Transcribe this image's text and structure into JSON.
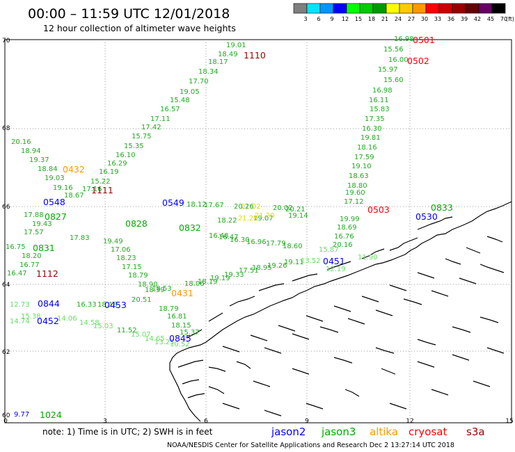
{
  "header": {
    "title": "00:00 – 11:59 UTC 12/01/2018",
    "subtitle": "12 hour collection of altimeter wave heights"
  },
  "colorbar": {
    "colors": [
      "#7f7f7f",
      "#00e5ff",
      "#0096ff",
      "#0000ff",
      "#00ff00",
      "#00cc00",
      "#009900",
      "#ffff00",
      "#ffcc00",
      "#ff9900",
      "#ff0000",
      "#cc0000",
      "#990000",
      "#660000",
      "#660066",
      "#000000"
    ],
    "labels": [
      "3",
      "6",
      "9",
      "12",
      "15",
      "18",
      "21",
      "24",
      "27",
      "30",
      "33",
      "36",
      "39",
      "42",
      "45",
      "70"
    ],
    "unit": "(ft)"
  },
  "axes": {
    "lat_labels": [
      "70",
      "68",
      "66",
      "64",
      "62",
      "60"
    ],
    "lon_labels": [
      "0",
      "3",
      "6",
      "9",
      "12",
      "15"
    ]
  },
  "colors": {
    "jason2": "#0000ff",
    "jason3": "#00aa00",
    "altika": "#ff9900",
    "cryosat": "#ff0000",
    "s3a": "#990000",
    "track_jason3": "#22aa22",
    "track_light": "#66dd66",
    "track_yellow": "#dddd00"
  },
  "track_labels": [
    {
      "text": "1110",
      "color": "#990000"
    },
    {
      "text": "0501",
      "color": "#ff0000"
    },
    {
      "text": "0502",
      "color": "#ff0000"
    },
    {
      "text": "0432",
      "color": "#ff9900"
    },
    {
      "text": "1111",
      "color": "#990000"
    },
    {
      "text": "0548",
      "color": "#0000ff"
    },
    {
      "text": "0549",
      "color": "#0000ff"
    },
    {
      "text": "0503",
      "color": "#ff0000"
    },
    {
      "text": "0530",
      "color": "#0000ff"
    },
    {
      "text": "0827",
      "color": "#00aa00"
    },
    {
      "text": "0828",
      "color": "#00aa00"
    },
    {
      "text": "0832",
      "color": "#00aa00"
    },
    {
      "text": "0833",
      "color": "#00aa00"
    },
    {
      "text": "0831",
      "color": "#00aa00"
    },
    {
      "text": "1112",
      "color": "#990000"
    },
    {
      "text": "0451",
      "color": "#0000ff"
    },
    {
      "text": "0844",
      "color": "#0000ff"
    },
    {
      "text": "0453",
      "color": "#0000ff"
    },
    {
      "text": "0431",
      "color": "#ff9900"
    },
    {
      "text": "0452",
      "color": "#0000ff"
    },
    {
      "text": "0845",
      "color": "#0000ff"
    },
    {
      "text": "1024",
      "color": "#00aa00"
    }
  ],
  "values": [
    {
      "text": "19.01",
      "c": "g"
    },
    {
      "text": "18.49",
      "c": "g"
    },
    {
      "text": "18.17",
      "c": "g"
    },
    {
      "text": "18.34",
      "c": "g"
    },
    {
      "text": "17.70",
      "c": "g"
    },
    {
      "text": "19.05",
      "c": "g"
    },
    {
      "text": "15.48",
      "c": "g"
    },
    {
      "text": "16.57",
      "c": "g"
    },
    {
      "text": "17.11",
      "c": "g"
    },
    {
      "text": "17.42",
      "c": "g"
    },
    {
      "text": "15.75",
      "c": "g"
    },
    {
      "text": "15.35",
      "c": "g"
    },
    {
      "text": "16.10",
      "c": "g"
    },
    {
      "text": "16.29",
      "c": "g"
    },
    {
      "text": "16.19",
      "c": "g"
    },
    {
      "text": "15.22",
      "c": "g"
    },
    {
      "text": "17.16",
      "c": "g"
    },
    {
      "text": "16.98",
      "c": "g"
    },
    {
      "text": "15.56",
      "c": "g"
    },
    {
      "text": "16.00",
      "c": "g"
    },
    {
      "text": "15.97",
      "c": "g"
    },
    {
      "text": "15.60",
      "c": "g"
    },
    {
      "text": "16.98",
      "c": "g"
    },
    {
      "text": "16.11",
      "c": "g"
    },
    {
      "text": "15.83",
      "c": "g"
    },
    {
      "text": "17.35",
      "c": "g"
    },
    {
      "text": "16.30",
      "c": "g"
    },
    {
      "text": "19.81",
      "c": "g"
    },
    {
      "text": "18.16",
      "c": "g"
    },
    {
      "text": "17.59",
      "c": "g"
    },
    {
      "text": "19.10",
      "c": "g"
    },
    {
      "text": "18.63",
      "c": "g"
    },
    {
      "text": "18.80",
      "c": "g"
    },
    {
      "text": "19.60",
      "c": "g"
    },
    {
      "text": "17.12",
      "c": "g"
    },
    {
      "text": "20.16",
      "c": "g"
    },
    {
      "text": "18.94",
      "c": "g"
    },
    {
      "text": "19.37",
      "c": "g"
    },
    {
      "text": "18.84",
      "c": "g"
    },
    {
      "text": "19.03",
      "c": "g"
    },
    {
      "text": "19.16",
      "c": "g"
    },
    {
      "text": "18.67",
      "c": "g"
    },
    {
      "text": "19.99",
      "c": "g"
    },
    {
      "text": "18.69",
      "c": "g"
    },
    {
      "text": "16.76",
      "c": "g"
    },
    {
      "text": "20.16",
      "c": "g"
    },
    {
      "text": "15.87",
      "c": "l"
    },
    {
      "text": "11.90",
      "c": "l"
    },
    {
      "text": "12.19",
      "c": "l"
    },
    {
      "text": "17.57",
      "c": "g"
    },
    {
      "text": "19.43",
      "c": "g"
    },
    {
      "text": "17.88",
      "c": "g"
    },
    {
      "text": "16.75",
      "c": "g"
    },
    {
      "text": "18.20",
      "c": "g"
    },
    {
      "text": "16.77",
      "c": "g"
    },
    {
      "text": "16.47",
      "c": "g"
    },
    {
      "text": "17.06",
      "c": "g"
    },
    {
      "text": "18.23",
      "c": "g"
    },
    {
      "text": "17.15",
      "c": "g"
    },
    {
      "text": "18.79",
      "c": "g"
    },
    {
      "text": "19.49",
      "c": "g"
    },
    {
      "text": "17.83",
      "c": "g"
    },
    {
      "text": "16.48",
      "c": "g"
    },
    {
      "text": "16.47",
      "c": "g"
    },
    {
      "text": "16.30",
      "c": "g"
    },
    {
      "text": "16.96",
      "c": "g"
    },
    {
      "text": "17.79",
      "c": "g"
    },
    {
      "text": "18.60",
      "c": "g"
    },
    {
      "text": "19.07",
      "c": "g"
    },
    {
      "text": "19.14",
      "c": "g"
    },
    {
      "text": "19.33",
      "c": "g"
    },
    {
      "text": "19.19",
      "c": "g"
    },
    {
      "text": "18.19",
      "c": "g"
    },
    {
      "text": "18.06",
      "c": "g"
    },
    {
      "text": "17.51",
      "c": "g"
    },
    {
      "text": "18.95",
      "c": "g"
    },
    {
      "text": "19.26",
      "c": "g"
    },
    {
      "text": "19.11",
      "c": "g"
    },
    {
      "text": "13.52",
      "c": "l"
    },
    {
      "text": "18.90",
      "c": "g"
    },
    {
      "text": "18.53",
      "c": "g"
    },
    {
      "text": "18.39",
      "c": "g"
    },
    {
      "text": "20.51",
      "c": "g"
    },
    {
      "text": "18.79",
      "c": "g"
    },
    {
      "text": "16.81",
      "c": "g"
    },
    {
      "text": "18.15",
      "c": "g"
    },
    {
      "text": "15.37",
      "c": "g"
    },
    {
      "text": "18.18",
      "c": "g"
    },
    {
      "text": "16.33",
      "c": "g"
    },
    {
      "text": "12.73",
      "c": "l"
    },
    {
      "text": "14.74",
      "c": "l"
    },
    {
      "text": "15.38",
      "c": "l"
    },
    {
      "text": "14.06",
      "c": "l"
    },
    {
      "text": "14.58",
      "c": "l"
    },
    {
      "text": "15.03",
      "c": "l"
    },
    {
      "text": "15.07",
      "c": "l"
    },
    {
      "text": "14.65",
      "c": "l"
    },
    {
      "text": "13.25",
      "c": "l"
    },
    {
      "text": "11.52",
      "c": "g"
    },
    {
      "text": "10.52",
      "c": "l"
    },
    {
      "text": "21.02",
      "c": "y"
    },
    {
      "text": "21.20",
      "c": "y"
    },
    {
      "text": "21.20",
      "c": "y"
    },
    {
      "text": "20.26",
      "c": "g"
    },
    {
      "text": "20.02",
      "c": "g"
    },
    {
      "text": "20.21",
      "c": "g"
    },
    {
      "text": "18.22",
      "c": "g"
    },
    {
      "text": "17.67",
      "c": "g"
    },
    {
      "text": "18.12",
      "c": "g"
    },
    {
      "text": "9.77",
      "c": "b"
    }
  ],
  "footer": {
    "note": "note:  1) Time is in UTC;  2) SWH is in feet",
    "legend": [
      {
        "text": "jason2",
        "color": "#0000ff"
      },
      {
        "text": "jason3",
        "color": "#00aa00"
      },
      {
        "text": "altika",
        "color": "#ff9900"
      },
      {
        "text": "cryosat",
        "color": "#ff0000"
      },
      {
        "text": "s3a",
        "color": "#990000"
      }
    ],
    "credit": "NOAA/NESDIS Center for Satellite Applications and Research    Dec  2 13:27:14 UTC 2018"
  }
}
